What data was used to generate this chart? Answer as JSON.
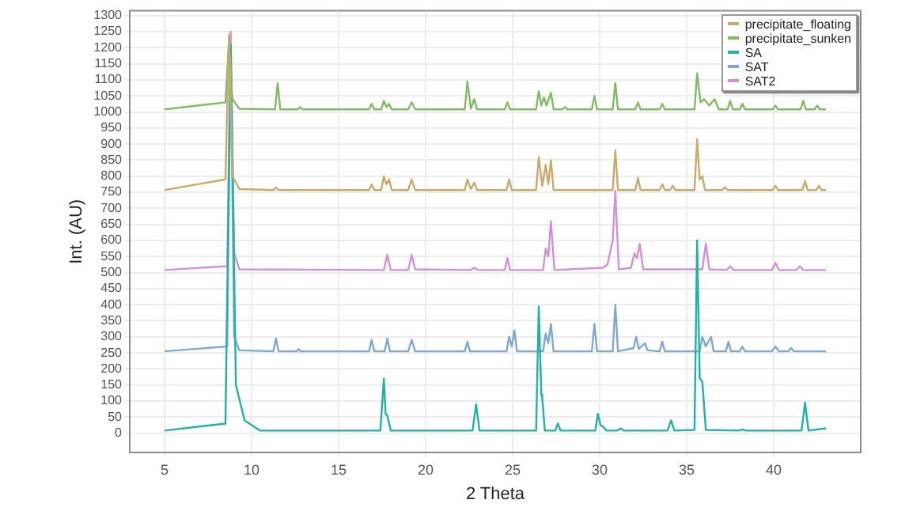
{
  "chart_data": {
    "type": "line",
    "xlabel": "2 Theta",
    "ylabel": "Int. (AU)",
    "xlim": [
      3,
      45
    ],
    "xticks": [
      5,
      10,
      15,
      20,
      25,
      30,
      35,
      40
    ],
    "ylim": [
      -60,
      1315
    ],
    "yticks": [
      0,
      50,
      100,
      150,
      200,
      250,
      300,
      350,
      400,
      450,
      500,
      550,
      600,
      650,
      700,
      750,
      800,
      850,
      900,
      950,
      1000,
      1050,
      1100,
      1150,
      1200,
      1250,
      1300
    ],
    "grid": true,
    "legend": "top right",
    "marker": "none",
    "line_style": "solid",
    "series": [
      {
        "name": "precipitate_floating",
        "color": "#c8ab6b",
        "x": [
          5,
          8.5,
          8.7,
          8.9,
          9.3,
          11.25,
          11.4,
          11.55,
          16.75,
          16.9,
          17.05,
          17.45,
          17.6,
          17.75,
          17.9,
          18.05,
          19.0,
          19.2,
          19.4,
          22.25,
          22.4,
          22.6,
          22.8,
          22.95,
          24.65,
          24.8,
          24.95,
          26.35,
          26.5,
          26.7,
          26.9,
          27.05,
          27.2,
          27.35,
          30.75,
          30.9,
          31.05,
          32.05,
          32.2,
          32.35,
          33.45,
          33.6,
          33.75,
          34.05,
          34.2,
          34.35,
          35.45,
          35.6,
          35.75,
          35.9,
          36.05,
          37.05,
          37.2,
          37.35,
          39.95,
          40.1,
          40.25,
          41.65,
          41.8,
          41.95,
          42.45,
          42.6,
          42.75,
          43
        ],
        "values": [
          757,
          790,
          1240,
          800,
          760,
          757,
          765,
          757,
          757,
          775,
          757,
          757,
          800,
          775,
          790,
          757,
          757,
          790,
          757,
          757,
          790,
          760,
          780,
          757,
          757,
          790,
          757,
          757,
          860,
          770,
          835,
          775,
          850,
          757,
          757,
          880,
          757,
          757,
          795,
          757,
          757,
          775,
          757,
          757,
          770,
          757,
          757,
          915,
          790,
          800,
          757,
          757,
          765,
          757,
          757,
          770,
          757,
          757,
          785,
          757,
          757,
          770,
          757,
          757
        ]
      },
      {
        "name": "precipitate_sunken",
        "color": "#80bd62",
        "x": [
          5,
          8.5,
          8.7,
          8.9,
          9.3,
          11.35,
          11.5,
          11.65,
          12.65,
          12.8,
          12.95,
          16.75,
          16.9,
          17.05,
          17.45,
          17.6,
          17.75,
          17.9,
          18.05,
          19.0,
          19.2,
          19.4,
          22.25,
          22.4,
          22.6,
          22.8,
          22.95,
          24.55,
          24.7,
          24.85,
          26.35,
          26.5,
          26.65,
          26.8,
          26.95,
          27.2,
          27.35,
          27.85,
          28.0,
          28.15,
          29.55,
          29.7,
          29.85,
          30.75,
          30.9,
          31.05,
          32.05,
          32.2,
          32.35,
          33.45,
          33.6,
          33.75,
          35.45,
          35.6,
          35.8,
          36.0,
          36.3,
          36.6,
          36.85,
          37.35,
          37.5,
          37.65,
          38.05,
          38.2,
          38.35,
          39.95,
          40.1,
          40.25,
          41.55,
          41.7,
          41.85,
          42.35,
          42.5,
          42.65,
          43
        ],
        "values": [
          1008,
          1030,
          1220,
          1040,
          1010,
          1008,
          1090,
          1008,
          1008,
          1015,
          1008,
          1008,
          1025,
          1008,
          1008,
          1035,
          1015,
          1025,
          1008,
          1008,
          1030,
          1008,
          1008,
          1095,
          1010,
          1040,
          1008,
          1008,
          1030,
          1008,
          1008,
          1065,
          1020,
          1045,
          1020,
          1060,
          1008,
          1008,
          1015,
          1008,
          1008,
          1050,
          1008,
          1008,
          1090,
          1008,
          1008,
          1030,
          1008,
          1008,
          1025,
          1008,
          1008,
          1120,
          1030,
          1040,
          1020,
          1040,
          1008,
          1008,
          1035,
          1008,
          1008,
          1025,
          1008,
          1008,
          1020,
          1008,
          1008,
          1035,
          1008,
          1008,
          1020,
          1008,
          1008
        ]
      },
      {
        "name": "SA",
        "color": "#1fb3a6",
        "x": [
          5,
          8.5,
          8.8,
          9.1,
          9.6,
          10.5,
          17.4,
          17.6,
          17.7,
          17.8,
          18.0,
          22.7,
          22.9,
          23.1,
          26.35,
          26.5,
          26.65,
          26.7,
          26.85,
          27.45,
          27.6,
          27.75,
          29.75,
          29.9,
          30.05,
          30.2,
          30.4,
          31.0,
          31.2,
          31.4,
          33.9,
          34.1,
          34.3,
          35.45,
          35.6,
          35.75,
          35.9,
          36.1,
          38.0,
          38.2,
          38.4,
          41.6,
          41.8,
          42.0,
          43
        ],
        "values": [
          8,
          30,
          1210,
          150,
          40,
          8,
          8,
          170,
          60,
          55,
          8,
          8,
          90,
          8,
          8,
          395,
          120,
          110,
          8,
          8,
          30,
          8,
          8,
          60,
          25,
          20,
          8,
          8,
          15,
          8,
          8,
          40,
          8,
          10,
          600,
          170,
          160,
          10,
          8,
          12,
          8,
          8,
          95,
          8,
          15
        ]
      },
      {
        "name": "SAT",
        "color": "#7eaad2",
        "x": [
          5,
          8.6,
          8.8,
          9.0,
          9.3,
          11.25,
          11.4,
          11.55,
          12.6,
          12.7,
          12.8,
          16.75,
          16.9,
          17.05,
          17.65,
          17.8,
          17.95,
          19.0,
          19.2,
          19.4,
          22.25,
          22.4,
          22.55,
          24.65,
          24.8,
          24.95,
          25.1,
          25.25,
          26.75,
          26.9,
          27.05,
          27.2,
          27.35,
          29.55,
          29.7,
          29.85,
          30.75,
          30.9,
          31.05,
          31.95,
          32.1,
          32.25,
          32.6,
          32.75,
          33.45,
          33.6,
          33.75,
          35.75,
          35.9,
          36.1,
          36.4,
          36.55,
          37.25,
          37.4,
          37.55,
          38.05,
          38.2,
          38.35,
          39.9,
          40.1,
          40.3,
          40.85,
          41,
          41.15,
          43
        ],
        "values": [
          255,
          270,
          1200,
          300,
          258,
          255,
          295,
          255,
          255,
          262,
          255,
          255,
          290,
          255,
          255,
          295,
          255,
          255,
          290,
          255,
          255,
          285,
          255,
          255,
          300,
          270,
          320,
          255,
          255,
          310,
          280,
          340,
          255,
          255,
          340,
          255,
          255,
          400,
          255,
          265,
          300,
          262,
          280,
          258,
          255,
          285,
          255,
          255,
          300,
          270,
          300,
          255,
          255,
          285,
          255,
          255,
          270,
          255,
          255,
          270,
          255,
          255,
          265,
          255,
          255
        ]
      },
      {
        "name": "SAT2",
        "color": "#d390da",
        "x": [
          5,
          8.6,
          8.8,
          9.0,
          9.3,
          17.6,
          17.8,
          18.0,
          19.0,
          19.2,
          19.4,
          22.6,
          22.8,
          23.0,
          24.55,
          24.7,
          24.85,
          26.75,
          26.9,
          27.05,
          27.2,
          27.4,
          30.2,
          30.45,
          30.75,
          30.9,
          31.1,
          31.8,
          32.0,
          32.15,
          32.3,
          32.5,
          35.9,
          36.1,
          36.3,
          37.3,
          37.5,
          37.7,
          39.9,
          40.1,
          40.3,
          41.3,
          41.5,
          41.7,
          43
        ],
        "values": [
          508,
          520,
          1250,
          560,
          510,
          508,
          555,
          508,
          508,
          555,
          510,
          508,
          515,
          508,
          508,
          545,
          508,
          508,
          575,
          550,
          660,
          508,
          515,
          525,
          600,
          755,
          510,
          515,
          560,
          545,
          590,
          510,
          510,
          590,
          510,
          508,
          520,
          508,
          508,
          530,
          508,
          508,
          520,
          508,
          508
        ]
      }
    ]
  }
}
